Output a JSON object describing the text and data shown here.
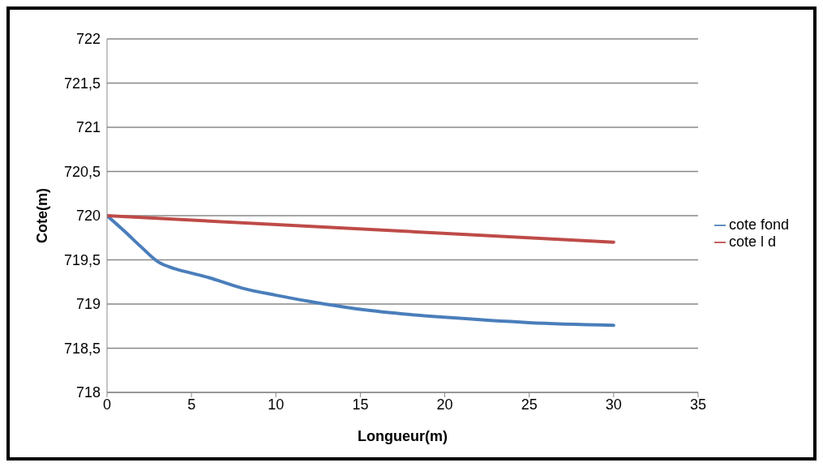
{
  "chart_data": {
    "type": "line",
    "xlabel": "Longueur(m)",
    "ylabel": "Cote(m)",
    "xlim": [
      0,
      35
    ],
    "xticks": [
      0,
      5,
      10,
      15,
      20,
      25,
      30,
      35
    ],
    "ylim": [
      718,
      722
    ],
    "yticks": [
      718,
      {
        "value": 718.5,
        "label": "718,5"
      },
      719,
      {
        "value": 719.5,
        "label": "719,5"
      },
      720,
      {
        "value": 720.5,
        "label": "720,5"
      },
      721,
      {
        "value": 721.5,
        "label": "721,5"
      },
      722
    ],
    "grid": "y",
    "legend": "right",
    "marker": "none",
    "line_style": "solid",
    "series": [
      {
        "name": "cote fond",
        "color": "#4a7ebb",
        "x": [
          0,
          1,
          2,
          3,
          4,
          5,
          6,
          8,
          10,
          12,
          15,
          18,
          20,
          25,
          30
        ],
        "values": [
          720,
          719.83,
          719.65,
          719.48,
          719.4,
          719.35,
          719.3,
          719.18,
          719.1,
          719.03,
          718.94,
          718.88,
          718.85,
          718.79,
          718.76
        ]
      },
      {
        "name": "cote l d",
        "color": "#be4b48",
        "x": [
          0,
          30
        ],
        "values": [
          720,
          719.7
        ]
      }
    ]
  }
}
